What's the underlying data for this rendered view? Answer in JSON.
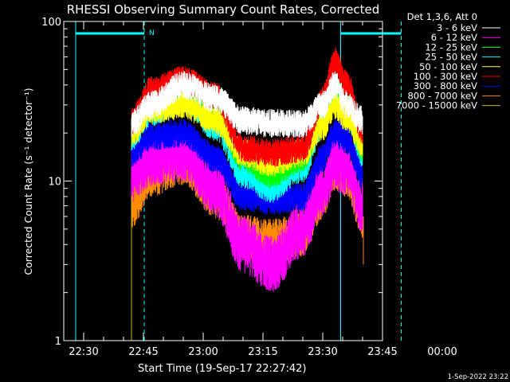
{
  "chart_data": {
    "type": "line",
    "title": "RHESSI Observing Summary Count Rates, Corrected",
    "xlabel": "Start Time (19-Sep-17 22:27:42)",
    "ylabel": "Corrected Count Rate (s⁻¹ detector⁻¹)",
    "yscale": "log",
    "ylim": [
      1,
      100
    ],
    "y_ticks": [
      "1",
      "10",
      "100"
    ],
    "x_ticks": [
      "22:30",
      "22:45",
      "23:00",
      "23:15",
      "23:30",
      "23:45",
      "00:00"
    ],
    "xlim_minutes": [
      -5,
      75
    ],
    "footer_date": "1-Sep-2022 23:22",
    "legend_header": "Det 1,3,6, Att 0",
    "legend_position": "top-right",
    "interval_marker_label": "N",
    "intervals": {
      "cyan_solid_minutes": [
        -2,
        64.5
      ],
      "cyan_dashed_minutes": [
        15.2,
        79.7
      ],
      "top_bar_segments_minutes": [
        [
          -2,
          15.2
        ],
        [
          64.5,
          79.7
        ]
      ]
    },
    "series": [
      {
        "name": "3 - 6 keV",
        "color": "#ffffff",
        "keyframes": [
          [
            12,
            23
          ],
          [
            17,
            30
          ],
          [
            25,
            40
          ],
          [
            33,
            33
          ],
          [
            40,
            24
          ],
          [
            47,
            23
          ],
          [
            55,
            23
          ],
          [
            60,
            30
          ],
          [
            63,
            40
          ],
          [
            66,
            30
          ],
          [
            70,
            24
          ]
        ]
      },
      {
        "name": "6 - 12 keV",
        "color": "#ff00ff",
        "keyframes": [
          [
            12,
            11
          ],
          [
            17,
            14
          ],
          [
            25,
            15
          ],
          [
            33,
            9
          ],
          [
            40,
            4
          ],
          [
            47,
            3
          ],
          [
            55,
            5
          ],
          [
            60,
            9
          ],
          [
            63,
            13
          ],
          [
            66,
            12
          ],
          [
            70,
            7
          ]
        ]
      },
      {
        "name": "12 - 25 keV",
        "color": "#00ff00",
        "keyframes": [
          [
            12,
            21
          ],
          [
            17,
            33
          ],
          [
            25,
            38
          ],
          [
            33,
            26
          ],
          [
            40,
            14
          ],
          [
            47,
            11
          ],
          [
            55,
            14
          ],
          [
            60,
            25
          ],
          [
            63,
            40
          ],
          [
            66,
            28
          ],
          [
            70,
            16
          ]
        ]
      },
      {
        "name": "25 - 50 keV",
        "color": "#00ffff",
        "keyframes": [
          [
            12,
            19
          ],
          [
            17,
            27
          ],
          [
            25,
            33
          ],
          [
            33,
            22
          ],
          [
            40,
            11
          ],
          [
            47,
            9
          ],
          [
            55,
            12
          ],
          [
            60,
            23
          ],
          [
            63,
            37
          ],
          [
            66,
            27
          ],
          [
            70,
            15
          ]
        ]
      },
      {
        "name": "50 - 100 keV",
        "color": "#ffff00",
        "keyframes": [
          [
            12,
            20
          ],
          [
            17,
            28
          ],
          [
            25,
            30
          ],
          [
            33,
            24
          ],
          [
            40,
            15
          ],
          [
            47,
            13
          ],
          [
            55,
            15
          ],
          [
            60,
            22
          ],
          [
            63,
            30
          ],
          [
            66,
            25
          ],
          [
            70,
            17
          ]
        ]
      },
      {
        "name": "100 - 300 keV",
        "color": "#ff0000",
        "keyframes": [
          [
            12,
            24
          ],
          [
            17,
            37
          ],
          [
            25,
            43
          ],
          [
            33,
            34
          ],
          [
            40,
            16
          ],
          [
            47,
            15
          ],
          [
            55,
            16
          ],
          [
            60,
            32
          ],
          [
            63,
            56
          ],
          [
            66,
            40
          ],
          [
            70,
            21
          ]
        ]
      },
      {
        "name": "300 - 800 keV",
        "color": "#0000ff",
        "keyframes": [
          [
            12,
            15
          ],
          [
            17,
            19
          ],
          [
            25,
            20
          ],
          [
            33,
            14
          ],
          [
            40,
            8
          ],
          [
            47,
            7.5
          ],
          [
            55,
            8
          ],
          [
            60,
            14
          ],
          [
            63,
            20
          ],
          [
            66,
            18
          ],
          [
            70,
            11
          ]
        ]
      },
      {
        "name": "800 - 7000 keV",
        "color": "#ff8c00",
        "keyframes": [
          [
            12,
            7
          ],
          [
            17,
            11
          ],
          [
            25,
            13
          ],
          [
            33,
            8
          ],
          [
            40,
            4.5
          ],
          [
            47,
            4.2
          ],
          [
            55,
            4.6
          ],
          [
            60,
            8
          ],
          [
            63,
            12
          ],
          [
            66,
            11
          ],
          [
            70,
            6
          ]
        ]
      },
      {
        "name": "7000 - 15000 keV",
        "color": "#c8b400",
        "keyframes": []
      }
    ]
  }
}
